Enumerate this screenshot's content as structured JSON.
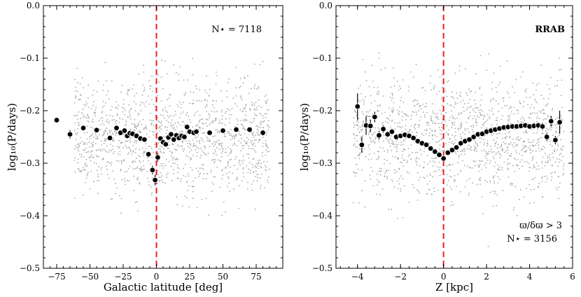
{
  "figure": {
    "bg_color": "#a8a8a8",
    "bin_color": "#000000",
    "ref_line_color": "#e8211a"
  },
  "chart_data": [
    {
      "type": "scatter",
      "id": "left",
      "xlabel": "Galactic latitude [deg]",
      "ylabel": "log₁₀(P/days)",
      "xlim": [
        -85,
        95
      ],
      "ylim": [
        -0.5,
        0.0
      ],
      "xticks": [
        -75,
        -50,
        -25,
        0,
        25,
        50,
        75
      ],
      "xtick_labels": [
        "−75",
        "−50",
        "−25",
        "0",
        "25",
        "50",
        "75"
      ],
      "yticks": [
        -0.5,
        -0.4,
        -0.3,
        -0.2,
        -0.1,
        0.0
      ],
      "ytick_labels": [
        "−0.5",
        "−0.4",
        "−0.3",
        "−0.2",
        "−0.1",
        "0.0"
      ],
      "ref_line_x": 0,
      "annotations": [
        {
          "text": "N⋆ = 7118",
          "position": "top-right"
        }
      ],
      "background_cloud": {
        "x_range": [
          -62,
          85
        ],
        "y_range": [
          -0.46,
          -0.09
        ],
        "center_y": -0.25,
        "n_points": 1400
      },
      "binned_series": {
        "name": "binned median",
        "x": [
          -75,
          -65,
          -55,
          -45,
          -35,
          -30,
          -27,
          -24,
          -22,
          -20,
          -18,
          -15,
          -12,
          -9,
          -6,
          -3,
          -1,
          1,
          3,
          5,
          7,
          9,
          11,
          13,
          15,
          17,
          19,
          21,
          23,
          25,
          28,
          30,
          40,
          50,
          60,
          70,
          80
        ],
        "y": [
          -0.218,
          -0.245,
          -0.233,
          -0.237,
          -0.252,
          -0.233,
          -0.242,
          -0.238,
          -0.248,
          -0.243,
          -0.244,
          -0.248,
          -0.253,
          -0.255,
          -0.283,
          -0.313,
          -0.332,
          -0.289,
          -0.253,
          -0.26,
          -0.264,
          -0.251,
          -0.245,
          -0.255,
          -0.247,
          -0.252,
          -0.248,
          -0.25,
          -0.231,
          -0.24,
          -0.242,
          -0.24,
          -0.242,
          -0.238,
          -0.236,
          -0.236,
          -0.242
        ],
        "yerr": [
          0.004,
          0.008,
          0.005,
          0.005,
          0.004,
          0.005,
          0.004,
          0.004,
          0.004,
          0.004,
          0.004,
          0.004,
          0.004,
          0.005,
          0.006,
          0.008,
          0.01,
          0.008,
          0.005,
          0.005,
          0.005,
          0.004,
          0.004,
          0.004,
          0.004,
          0.004,
          0.004,
          0.004,
          0.004,
          0.004,
          0.004,
          0.004,
          0.004,
          0.004,
          0.004,
          0.004,
          0.006
        ]
      }
    },
    {
      "type": "scatter",
      "id": "right",
      "xlabel": "Z [kpc]",
      "ylabel": "log₁₀(P/days)",
      "xlim": [
        -5,
        6
      ],
      "ylim": [
        -0.5,
        0.0
      ],
      "xticks": [
        -4,
        -2,
        0,
        2,
        4,
        6
      ],
      "xtick_labels": [
        "−4",
        "−2",
        "0",
        "2",
        "4",
        "6"
      ],
      "yticks": [
        -0.5,
        -0.4,
        -0.3,
        -0.2,
        -0.1,
        0.0
      ],
      "ytick_labels": [
        "−0.5",
        "−0.4",
        "−0.3",
        "−0.2",
        "−0.1",
        "0.0"
      ],
      "ref_line_x": 0,
      "annotations": [
        {
          "text": "RRAB",
          "position": "top-right"
        },
        {
          "text": "ϖ/δϖ > 3",
          "position": "bottom-right"
        },
        {
          "text": "N⋆ = 3156",
          "position": "bottom-right"
        }
      ],
      "background_cloud": {
        "x_range": [
          -4.2,
          5.6
        ],
        "y_range": [
          -0.46,
          -0.09
        ],
        "center_y": -0.25,
        "n_points": 1400
      },
      "binned_series": {
        "name": "binned median",
        "x": [
          -4.0,
          -3.8,
          -3.6,
          -3.4,
          -3.2,
          -3.0,
          -2.8,
          -2.6,
          -2.4,
          -2.2,
          -2.0,
          -1.8,
          -1.6,
          -1.4,
          -1.2,
          -1.0,
          -0.8,
          -0.6,
          -0.4,
          -0.2,
          0.0,
          0.2,
          0.4,
          0.6,
          0.8,
          1.0,
          1.2,
          1.4,
          1.6,
          1.8,
          2.0,
          2.2,
          2.4,
          2.6,
          2.8,
          3.0,
          3.2,
          3.4,
          3.6,
          3.8,
          4.0,
          4.2,
          4.4,
          4.6,
          4.8,
          5.0,
          5.2,
          5.4
        ],
        "y": [
          -0.192,
          -0.265,
          -0.228,
          -0.229,
          -0.212,
          -0.247,
          -0.235,
          -0.245,
          -0.24,
          -0.25,
          -0.248,
          -0.246,
          -0.248,
          -0.252,
          -0.258,
          -0.262,
          -0.265,
          -0.272,
          -0.278,
          -0.284,
          -0.291,
          -0.28,
          -0.275,
          -0.27,
          -0.262,
          -0.258,
          -0.255,
          -0.25,
          -0.245,
          -0.244,
          -0.24,
          -0.238,
          -0.236,
          -0.234,
          -0.232,
          -0.231,
          -0.23,
          -0.23,
          -0.229,
          -0.228,
          -0.23,
          -0.229,
          -0.228,
          -0.23,
          -0.25,
          -0.22,
          -0.256,
          -0.222
        ],
        "yerr": [
          0.025,
          0.015,
          0.018,
          0.012,
          0.01,
          0.008,
          0.007,
          0.006,
          0.006,
          0.006,
          0.005,
          0.005,
          0.005,
          0.005,
          0.005,
          0.005,
          0.005,
          0.005,
          0.005,
          0.005,
          0.006,
          0.005,
          0.005,
          0.005,
          0.005,
          0.005,
          0.005,
          0.005,
          0.005,
          0.005,
          0.005,
          0.005,
          0.005,
          0.005,
          0.005,
          0.005,
          0.005,
          0.005,
          0.005,
          0.005,
          0.005,
          0.006,
          0.006,
          0.007,
          0.008,
          0.01,
          0.008,
          0.022
        ]
      }
    }
  ]
}
